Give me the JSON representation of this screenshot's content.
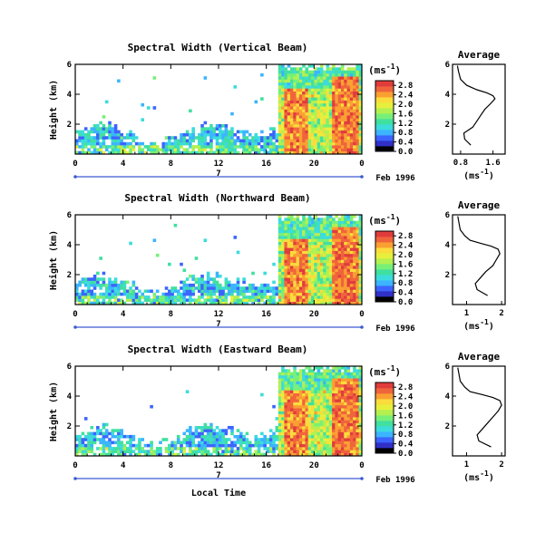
{
  "figure": {
    "shared_xlabel": "Local Time",
    "date_label": "Feb 1996",
    "unit_label": "(ms",
    "unit_sup": "-1",
    "unit_close": ")"
  },
  "colorbar": {
    "colors": [
      "#000000",
      "#3030c8",
      "#3c64ff",
      "#3cb4ff",
      "#3cdcdc",
      "#40e0a0",
      "#78f078",
      "#b4f050",
      "#e6f03c",
      "#fadc3c",
      "#faa032",
      "#f0643c",
      "#e03c3c"
    ]
  },
  "chart_data": [
    {
      "type": "heatmap",
      "title": "Spectral Width (Vertical Beam)",
      "ylabel": "Height (km)",
      "xlim": [
        0,
        24
      ],
      "ylim": [
        0,
        6
      ],
      "x_ticks": [
        "0",
        "4",
        "8",
        "12",
        "16",
        "20",
        "0"
      ],
      "y_ticks": [
        "2",
        "4",
        "6"
      ],
      "day_marker": "7",
      "colorbar_ticks": [
        "0.0",
        "0.4",
        "0.8",
        "1.2",
        "1.6",
        "2.0",
        "2.4",
        "2.8"
      ],
      "colorbar_range": [
        0,
        3.0
      ],
      "profile": {
        "title": "Average",
        "xlabel": "(ms",
        "xlabel_sup": "-1",
        "xlabel_close": ")",
        "x_ticks": [
          "0.8",
          "1.6"
        ],
        "x_tick_values": [
          0.8,
          1.6
        ],
        "xlim": [
          0.6,
          1.9
        ],
        "y_ticks": [
          "2",
          "4",
          "6"
        ],
        "ylim": [
          0,
          6
        ],
        "height_km": [
          0.6,
          1.0,
          1.4,
          1.8,
          2.2,
          2.6,
          3.0,
          3.4,
          3.7,
          3.9,
          4.1,
          4.3,
          4.6,
          5.0,
          5.5,
          5.9
        ],
        "width_ms": [
          1.05,
          0.9,
          0.88,
          1.1,
          1.2,
          1.3,
          1.4,
          1.55,
          1.65,
          1.6,
          1.45,
          1.2,
          0.95,
          0.8,
          0.75,
          0.72
        ]
      }
    },
    {
      "type": "heatmap",
      "title": "Spectral Width (Northward Beam)",
      "ylabel": "Height (km)",
      "xlim": [
        0,
        24
      ],
      "ylim": [
        0,
        6
      ],
      "x_ticks": [
        "0",
        "4",
        "8",
        "12",
        "16",
        "20",
        "0"
      ],
      "y_ticks": [
        "2",
        "4",
        "6"
      ],
      "day_marker": "7",
      "colorbar_ticks": [
        "0.0",
        "0.4",
        "0.8",
        "1.2",
        "1.6",
        "2.0",
        "2.4",
        "2.8"
      ],
      "colorbar_range": [
        0,
        3.0
      ],
      "profile": {
        "title": "Average",
        "xlabel": "(ms",
        "xlabel_sup": "-1",
        "xlabel_close": ")",
        "x_ticks": [
          "1",
          "2"
        ],
        "x_tick_values": [
          1,
          2
        ],
        "xlim": [
          0.6,
          2.1
        ],
        "y_ticks": [
          "2",
          "4",
          "6"
        ],
        "ylim": [
          0,
          6
        ],
        "height_km": [
          0.6,
          1.0,
          1.4,
          1.8,
          2.2,
          2.6,
          3.0,
          3.4,
          3.7,
          3.9,
          4.1,
          4.3,
          4.6,
          5.0,
          5.5,
          5.9
        ],
        "width_ms": [
          1.6,
          1.3,
          1.25,
          1.4,
          1.55,
          1.75,
          1.85,
          1.95,
          1.9,
          1.7,
          1.4,
          1.1,
          0.95,
          0.82,
          0.78,
          0.75
        ]
      }
    },
    {
      "type": "heatmap",
      "title": "Spectral Width (Eastward Beam)",
      "ylabel": "Height (km)",
      "xlim": [
        0,
        24
      ],
      "ylim": [
        0,
        6
      ],
      "x_ticks": [
        "0",
        "4",
        "8",
        "12",
        "16",
        "20",
        "0"
      ],
      "y_ticks": [
        "2",
        "4",
        "6"
      ],
      "day_marker": "7",
      "colorbar_ticks": [
        "0.0",
        "0.4",
        "0.8",
        "1.2",
        "1.6",
        "2.0",
        "2.4",
        "2.8"
      ],
      "colorbar_range": [
        0,
        3.0
      ],
      "profile": {
        "title": "Average",
        "xlabel": "(ms",
        "xlabel_sup": "-1",
        "xlabel_close": ")",
        "x_ticks": [
          "1",
          "2"
        ],
        "x_tick_values": [
          1,
          2
        ],
        "xlim": [
          0.6,
          2.1
        ],
        "y_ticks": [
          "2",
          "4",
          "6"
        ],
        "ylim": [
          0,
          6
        ],
        "height_km": [
          0.6,
          1.0,
          1.4,
          1.8,
          2.2,
          2.6,
          3.0,
          3.4,
          3.7,
          3.9,
          4.1,
          4.3,
          4.6,
          5.0,
          5.5,
          5.9
        ],
        "width_ms": [
          1.7,
          1.35,
          1.3,
          1.45,
          1.6,
          1.75,
          1.9,
          2.0,
          1.95,
          1.75,
          1.45,
          1.1,
          0.95,
          0.82,
          0.78,
          0.75
        ]
      }
    }
  ]
}
